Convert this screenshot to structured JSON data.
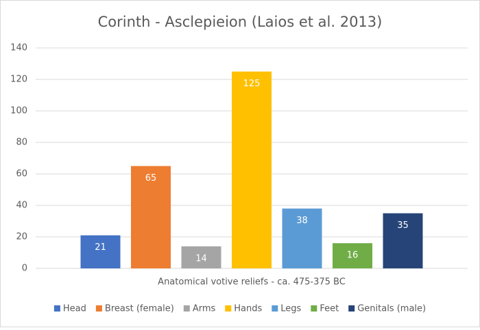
{
  "chart_data": {
    "type": "bar",
    "title": "Corinth - Asclepieion (Laios et al. 2013)",
    "categories": [
      "Anatomical votive reliefs - ca. 475-375 BC"
    ],
    "series": [
      {
        "name": "Head",
        "color": "#4472c4",
        "values": [
          21
        ]
      },
      {
        "name": "Breast (female)",
        "color": "#ed7d31",
        "values": [
          65
        ]
      },
      {
        "name": "Arms",
        "color": "#a5a5a5",
        "values": [
          14
        ]
      },
      {
        "name": "Hands",
        "color": "#ffc000",
        "values": [
          125
        ]
      },
      {
        "name": "Legs",
        "color": "#5b9bd5",
        "values": [
          38
        ]
      },
      {
        "name": "Feet",
        "color": "#70ad47",
        "values": [
          16
        ]
      },
      {
        "name": "Genitals (male)",
        "color": "#264478",
        "values": [
          35
        ]
      }
    ],
    "ylim": [
      0,
      140
    ],
    "yticks": [
      0,
      20,
      40,
      60,
      80,
      100,
      120,
      140
    ],
    "grid": true,
    "legend": "bottom"
  }
}
